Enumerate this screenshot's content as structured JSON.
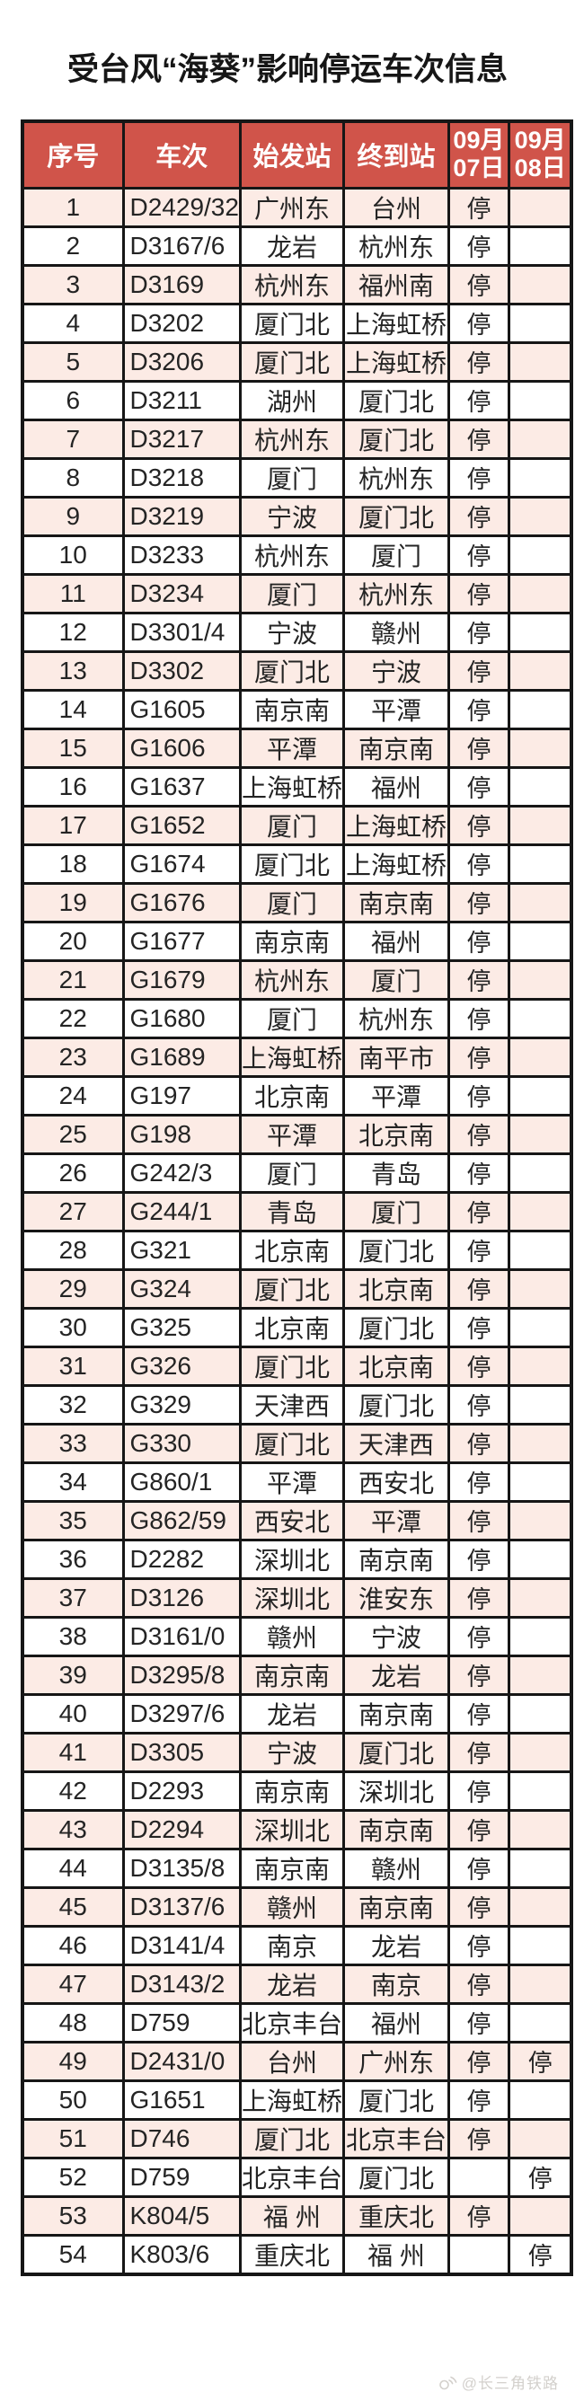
{
  "title": "受台风“海葵”影响停运车次信息",
  "watermark": {
    "icon": "weibo-broadcast-icon",
    "text": "@长三角铁路"
  },
  "colors": {
    "header_bg": "#d0544a",
    "header_text": "#ffffff",
    "row_alt_bg": "#fcebe5",
    "row_bg": "#ffffff",
    "border": "#161616",
    "cell_text": "#242424",
    "watermark_text": "#d3d0cc"
  },
  "chart_data": {
    "type": "table",
    "title": "受台风“海葵”影响停运车次信息",
    "columns": [
      "序号",
      "车次",
      "始发站",
      "终到站",
      "09月07日",
      "09月08日"
    ],
    "date_columns": [
      {
        "month": "09月",
        "day": "07日"
      },
      {
        "month": "09月",
        "day": "08日"
      }
    ],
    "suspended_marker": "停",
    "rows": [
      [
        "1",
        "D2429/32",
        "广州东",
        "台州",
        "停",
        ""
      ],
      [
        "2",
        "D3167/6",
        "龙岩",
        "杭州东",
        "停",
        ""
      ],
      [
        "3",
        "D3169",
        "杭州东",
        "福州南",
        "停",
        ""
      ],
      [
        "4",
        "D3202",
        "厦门北",
        "上海虹桥",
        "停",
        ""
      ],
      [
        "5",
        "D3206",
        "厦门北",
        "上海虹桥",
        "停",
        ""
      ],
      [
        "6",
        "D3211",
        "湖州",
        "厦门北",
        "停",
        ""
      ],
      [
        "7",
        "D3217",
        "杭州东",
        "厦门北",
        "停",
        ""
      ],
      [
        "8",
        "D3218",
        "厦门",
        "杭州东",
        "停",
        ""
      ],
      [
        "9",
        "D3219",
        "宁波",
        "厦门北",
        "停",
        ""
      ],
      [
        "10",
        "D3233",
        "杭州东",
        "厦门",
        "停",
        ""
      ],
      [
        "11",
        "D3234",
        "厦门",
        "杭州东",
        "停",
        ""
      ],
      [
        "12",
        "D3301/4",
        "宁波",
        "赣州",
        "停",
        ""
      ],
      [
        "13",
        "D3302",
        "厦门北",
        "宁波",
        "停",
        ""
      ],
      [
        "14",
        "G1605",
        "南京南",
        "平潭",
        "停",
        ""
      ],
      [
        "15",
        "G1606",
        "平潭",
        "南京南",
        "停",
        ""
      ],
      [
        "16",
        "G1637",
        "上海虹桥",
        "福州",
        "停",
        ""
      ],
      [
        "17",
        "G1652",
        "厦门",
        "上海虹桥",
        "停",
        ""
      ],
      [
        "18",
        "G1674",
        "厦门北",
        "上海虹桥",
        "停",
        ""
      ],
      [
        "19",
        "G1676",
        "厦门",
        "南京南",
        "停",
        ""
      ],
      [
        "20",
        "G1677",
        "南京南",
        "福州",
        "停",
        ""
      ],
      [
        "21",
        "G1679",
        "杭州东",
        "厦门",
        "停",
        ""
      ],
      [
        "22",
        "G1680",
        "厦门",
        "杭州东",
        "停",
        ""
      ],
      [
        "23",
        "G1689",
        "上海虹桥",
        "南平市",
        "停",
        ""
      ],
      [
        "24",
        "G197",
        "北京南",
        "平潭",
        "停",
        ""
      ],
      [
        "25",
        "G198",
        "平潭",
        "北京南",
        "停",
        ""
      ],
      [
        "26",
        "G242/3",
        "厦门",
        "青岛",
        "停",
        ""
      ],
      [
        "27",
        "G244/1",
        "青岛",
        "厦门",
        "停",
        ""
      ],
      [
        "28",
        "G321",
        "北京南",
        "厦门北",
        "停",
        ""
      ],
      [
        "29",
        "G324",
        "厦门北",
        "北京南",
        "停",
        ""
      ],
      [
        "30",
        "G325",
        "北京南",
        "厦门北",
        "停",
        ""
      ],
      [
        "31",
        "G326",
        "厦门北",
        "北京南",
        "停",
        ""
      ],
      [
        "32",
        "G329",
        "天津西",
        "厦门北",
        "停",
        ""
      ],
      [
        "33",
        "G330",
        "厦门北",
        "天津西",
        "停",
        ""
      ],
      [
        "34",
        "G860/1",
        "平潭",
        "西安北",
        "停",
        ""
      ],
      [
        "35",
        "G862/59",
        "西安北",
        "平潭",
        "停",
        ""
      ],
      [
        "36",
        "D2282",
        "深圳北",
        "南京南",
        "停",
        ""
      ],
      [
        "37",
        "D3126",
        "深圳北",
        "淮安东",
        "停",
        ""
      ],
      [
        "38",
        "D3161/0",
        "赣州",
        "宁波",
        "停",
        ""
      ],
      [
        "39",
        "D3295/8",
        "南京南",
        "龙岩",
        "停",
        ""
      ],
      [
        "40",
        "D3297/6",
        "龙岩",
        "南京南",
        "停",
        ""
      ],
      [
        "41",
        "D3305",
        "宁波",
        "厦门北",
        "停",
        ""
      ],
      [
        "42",
        "D2293",
        "南京南",
        "深圳北",
        "停",
        ""
      ],
      [
        "43",
        "D2294",
        "深圳北",
        "南京南",
        "停",
        ""
      ],
      [
        "44",
        "D3135/8",
        "南京南",
        "赣州",
        "停",
        ""
      ],
      [
        "45",
        "D3137/6",
        "赣州",
        "南京南",
        "停",
        ""
      ],
      [
        "46",
        "D3141/4",
        "南京",
        "龙岩",
        "停",
        ""
      ],
      [
        "47",
        "D3143/2",
        "龙岩",
        "南京",
        "停",
        ""
      ],
      [
        "48",
        "D759",
        "北京丰台",
        "福州",
        "停",
        ""
      ],
      [
        "49",
        "D2431/0",
        "台州",
        "广州东",
        "停",
        "停"
      ],
      [
        "50",
        "G1651",
        "上海虹桥",
        "厦门北",
        "停",
        ""
      ],
      [
        "51",
        "D746",
        "厦门北",
        "北京丰台",
        "停",
        ""
      ],
      [
        "52",
        "D759",
        "北京丰台",
        "厦门北",
        "",
        "停"
      ],
      [
        "53",
        "K804/5",
        "福 州",
        "重庆北",
        "停",
        ""
      ],
      [
        "54",
        "K803/6",
        "重庆北",
        "福 州",
        "",
        "停"
      ]
    ]
  }
}
